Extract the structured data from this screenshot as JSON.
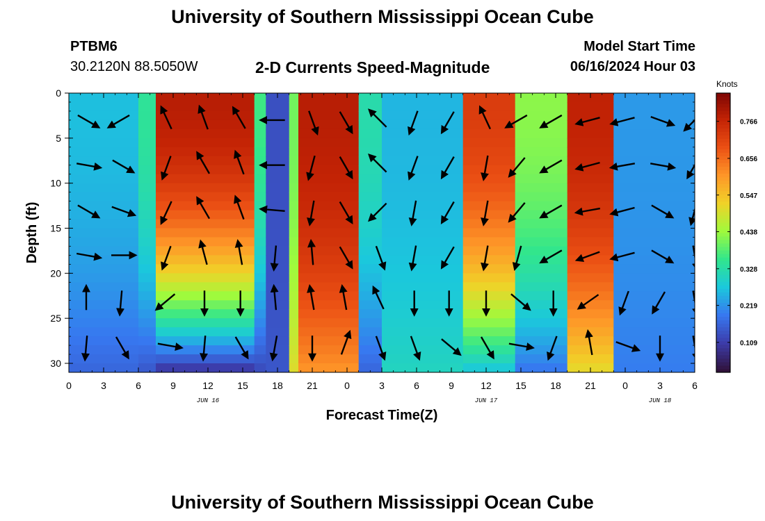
{
  "header": {
    "main_title": "University of Southern Mississippi Ocean Cube",
    "bottom_title": "University of Southern Mississippi Ocean Cube",
    "station_name": "PTBM6",
    "station_coords": "30.2120N  88.5050W",
    "chart_title": "2-D Currents Speed-Magnitude",
    "model_start_label": "Model Start Time",
    "model_start_value": "06/16/2024 Hour 03"
  },
  "chart_data": {
    "type": "heatmap",
    "title": "2-D Currents Speed-Magnitude",
    "xlabel": "Forecast Time(Z)",
    "ylabel": "Depth (ft)",
    "x_range_hours": [
      0,
      54
    ],
    "y_range_ft": [
      0,
      31
    ],
    "x_ticks": [
      {
        "hour": 0,
        "label": "0"
      },
      {
        "hour": 3,
        "label": "3"
      },
      {
        "hour": 6,
        "label": "6"
      },
      {
        "hour": 9,
        "label": "9"
      },
      {
        "hour": 12,
        "label": "12"
      },
      {
        "hour": 15,
        "label": "15"
      },
      {
        "hour": 18,
        "label": "18"
      },
      {
        "hour": 21,
        "label": "21"
      },
      {
        "hour": 24,
        "label": "0"
      },
      {
        "hour": 27,
        "label": "3"
      },
      {
        "hour": 30,
        "label": "6"
      },
      {
        "hour": 33,
        "label": "9"
      },
      {
        "hour": 36,
        "label": "12"
      },
      {
        "hour": 39,
        "label": "15"
      },
      {
        "hour": 42,
        "label": "18"
      },
      {
        "hour": 45,
        "label": "21"
      },
      {
        "hour": 48,
        "label": "0"
      },
      {
        "hour": 51,
        "label": "3"
      },
      {
        "hour": 54,
        "label": "6"
      }
    ],
    "y_ticks": [
      0,
      5,
      10,
      15,
      20,
      25,
      30
    ],
    "date_labels": [
      {
        "hour": 12,
        "label": "JUN 16"
      },
      {
        "hour": 36,
        "label": "JUN 17"
      },
      {
        "hour": 51,
        "label": "JUN 18"
      }
    ],
    "colorbar": {
      "units": "Knots",
      "range": [
        0.02,
        0.85
      ],
      "ticks": [
        "0.109",
        "0.219",
        "0.328",
        "0.438",
        "0.547",
        "0.656",
        "0.766"
      ],
      "tick_values": [
        0.109,
        0.219,
        0.328,
        0.438,
        0.547,
        0.656,
        0.766
      ]
    },
    "speed_bands_knots": [
      {
        "start_hour": 0,
        "end_hour": 6,
        "surface": 0.26,
        "bottom": 0.16
      },
      {
        "start_hour": 6,
        "end_hour": 7.5,
        "surface": 0.34,
        "bottom": 0.14
      },
      {
        "start_hour": 7.5,
        "end_hour": 16,
        "surface": 0.78,
        "bottom": 0.08
      },
      {
        "start_hour": 16,
        "end_hour": 17,
        "surface": 0.36,
        "bottom": 0.12
      },
      {
        "start_hour": 17,
        "end_hour": 19,
        "surface": 0.13,
        "bottom": 0.14
      },
      {
        "start_hour": 19,
        "end_hour": 19.8,
        "surface": 0.4,
        "bottom": 0.5
      },
      {
        "start_hour": 19.8,
        "end_hour": 25,
        "surface": 0.78,
        "bottom": 0.6
      },
      {
        "start_hour": 25,
        "end_hour": 27,
        "surface": 0.32,
        "bottom": 0.16
      },
      {
        "start_hour": 27,
        "end_hour": 34,
        "surface": 0.25,
        "bottom": 0.3
      },
      {
        "start_hour": 34,
        "end_hour": 38.5,
        "surface": 0.72,
        "bottom": 0.26
      },
      {
        "start_hour": 38.5,
        "end_hour": 43,
        "surface": 0.42,
        "bottom": 0.18
      },
      {
        "start_hour": 43,
        "end_hour": 47,
        "surface": 0.77,
        "bottom": 0.5
      },
      {
        "start_hour": 47,
        "end_hour": 54,
        "surface": 0.22,
        "bottom": 0.19
      }
    ],
    "vector_columns_hours": [
      1.5,
      4.5,
      8.5,
      11.7,
      14.8,
      17.8,
      21,
      23.8,
      26.8,
      29.8,
      32.8,
      36,
      38.8,
      41.8,
      45,
      48,
      51,
      54
    ],
    "vector_rows_ft": [
      3,
      8,
      13,
      18,
      23,
      28
    ],
    "vector_directions_deg": [
      [
        -30,
        -150,
        115,
        110,
        120,
        180,
        -70,
        -60,
        135,
        -110,
        -120,
        115,
        -150,
        -150,
        -165,
        -165,
        -20,
        -135
      ],
      [
        -10,
        -30,
        -110,
        120,
        110,
        180,
        -105,
        -60,
        135,
        -110,
        -120,
        -100,
        -130,
        -150,
        -165,
        -170,
        -10,
        -120
      ],
      [
        -30,
        -20,
        -115,
        120,
        110,
        175,
        -100,
        -60,
        -135,
        -100,
        -120,
        -100,
        -130,
        -150,
        -170,
        -165,
        -30,
        -105
      ],
      [
        -10,
        0,
        -110,
        105,
        100,
        -95,
        95,
        -60,
        -70,
        -100,
        -120,
        -100,
        -105,
        -150,
        -160,
        -165,
        -30,
        -80
      ],
      [
        90,
        -95,
        -140,
        -90,
        -90,
        95,
        100,
        100,
        115,
        -90,
        -90,
        -90,
        -40,
        -90,
        -145,
        -110,
        -120,
        -80
      ],
      [
        -95,
        -60,
        -10,
        -95,
        -60,
        -100,
        -90,
        70,
        -70,
        -70,
        -40,
        -60,
        -10,
        -110,
        100,
        -20,
        -90,
        -80
      ]
    ]
  }
}
